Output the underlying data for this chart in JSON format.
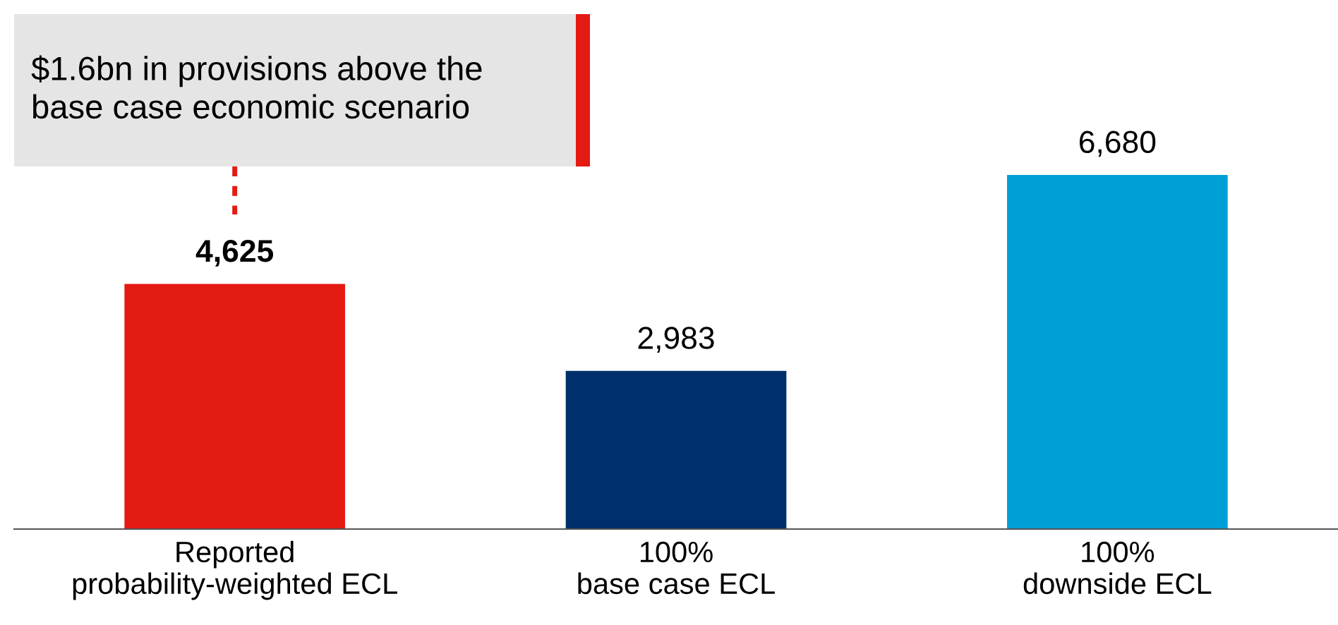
{
  "chart_data": {
    "type": "bar",
    "categories": [
      "Reported\nprobability-weighted ECL",
      "100%\nbase case ECL",
      "100%\ndownside ECL"
    ],
    "values": [
      4625,
      2983,
      6680
    ],
    "colors": [
      "#e31b13",
      "#00306b",
      "#009fd6"
    ],
    "value_labels": [
      "4,625",
      "2,983",
      "6,680"
    ],
    "grid": false,
    "legend": false,
    "tick_labels": "x",
    "annotations": [
      "$1.6bn in provisions above the\nbase case economic scenario"
    ]
  }
}
